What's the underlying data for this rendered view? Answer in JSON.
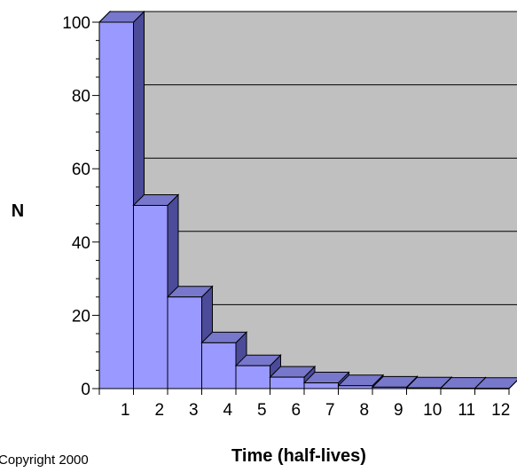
{
  "chart_data": {
    "type": "bar",
    "categories": [
      "1",
      "2",
      "3",
      "4",
      "5",
      "6",
      "7",
      "8",
      "9",
      "10",
      "11",
      "12"
    ],
    "values": [
      100,
      50,
      25,
      12.5,
      6.25,
      3.125,
      1.5625,
      0.78125,
      0.390625,
      0.1953125,
      0.09765625,
      0.048828125
    ],
    "xlabel": "Time (half-lives)",
    "ylabel": "N",
    "ylim": [
      0,
      100
    ],
    "yticks": [
      "0",
      "20",
      "40",
      "60",
      "80",
      "100"
    ],
    "grid": true,
    "three_d": true,
    "colors": {
      "bar_front": "#9999ff",
      "bar_side": "#4b4b9a",
      "bar_top": "#7777cc",
      "wall": "#c0c0c0",
      "floor": "#808080",
      "grid": "#000000"
    }
  },
  "footer": {
    "copyright": "Copyright 2000"
  }
}
